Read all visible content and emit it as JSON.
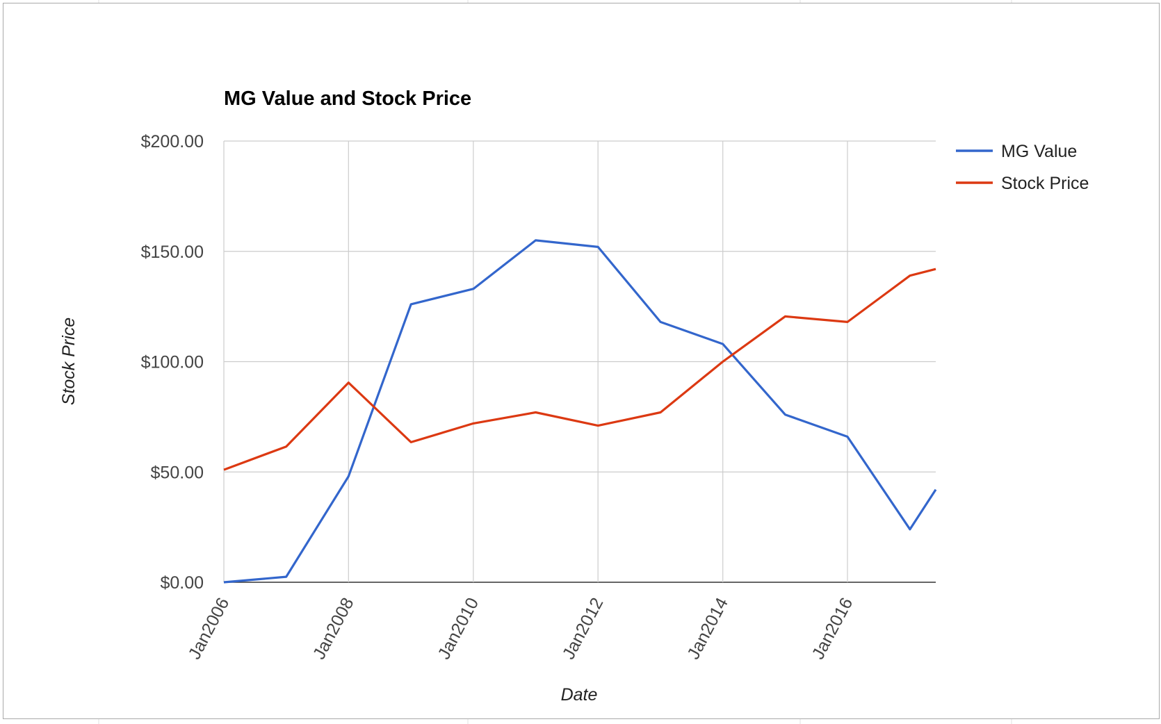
{
  "chart_data": {
    "type": "line",
    "title": "MG Value and Stock Price",
    "xlabel": "Date",
    "ylabel": "Stock Price",
    "x": [
      "2006-01",
      "2007-01",
      "2008-01",
      "2009-01",
      "2010-01",
      "2011-01",
      "2012-01",
      "2013-01",
      "2014-01",
      "2015-01",
      "2016-01",
      "2017-01",
      "2017-06"
    ],
    "x_ticks": [
      "Jan2006",
      "Jan2008",
      "Jan2010",
      "Jan2012",
      "Jan2014",
      "Jan2016"
    ],
    "y_ticks": [
      "$0.00",
      "$50.00",
      "$100.00",
      "$150.00",
      "$200.00"
    ],
    "ylim": [
      0,
      200
    ],
    "grid": true,
    "legend": "right",
    "series": [
      {
        "name": "MG Value",
        "color": "#3366cc",
        "values": [
          0,
          2.5,
          48,
          126,
          133,
          155,
          152,
          118,
          108,
          76,
          66,
          24,
          42
        ]
      },
      {
        "name": "Stock Price",
        "color": "#dc3912",
        "values": [
          51,
          61.5,
          90.5,
          63.5,
          72,
          77,
          71,
          77,
          100,
          120.5,
          118,
          139,
          142
        ]
      }
    ]
  }
}
